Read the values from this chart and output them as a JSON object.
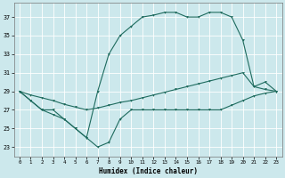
{
  "xlabel": "Humidex (Indice chaleur)",
  "bg_color": "#cce8ec",
  "line_color": "#1e6b5e",
  "grid_color": "#ffffff",
  "xlim": [
    -0.5,
    23.5
  ],
  "ylim": [
    22.0,
    38.5
  ],
  "yticks": [
    23,
    25,
    27,
    29,
    31,
    33,
    35,
    37
  ],
  "xticks": [
    0,
    1,
    2,
    3,
    4,
    5,
    6,
    7,
    8,
    9,
    10,
    11,
    12,
    13,
    14,
    15,
    16,
    17,
    18,
    19,
    20,
    21,
    22,
    23
  ],
  "line_upper_x": [
    0,
    1,
    2,
    3,
    4,
    5,
    6,
    7,
    8,
    9,
    10,
    11,
    12,
    13,
    14,
    15,
    16,
    17,
    18,
    19,
    20,
    21,
    22,
    23
  ],
  "line_upper_y": [
    29,
    28,
    27,
    27,
    26,
    25,
    24,
    29,
    33,
    35,
    36,
    37,
    37.2,
    37.5,
    37.5,
    37,
    37,
    37.5,
    37.5,
    37,
    34.5,
    29.5,
    30,
    29
  ],
  "line_mid_x": [
    0,
    1,
    2,
    3,
    4,
    5,
    6,
    7,
    8,
    9,
    10,
    11,
    12,
    13,
    14,
    15,
    16,
    17,
    18,
    19,
    20,
    21,
    22,
    23
  ],
  "line_mid_y": [
    29,
    28.6,
    28.3,
    28,
    27.6,
    27.3,
    27,
    27.2,
    27.5,
    27.8,
    28,
    28.3,
    28.6,
    28.9,
    29.2,
    29.5,
    29.8,
    30.1,
    30.4,
    30.7,
    31,
    29.5,
    29.2,
    29
  ],
  "line_lower_x": [
    0,
    1,
    2,
    3,
    4,
    5,
    6,
    7,
    8,
    9,
    10,
    11,
    12,
    13,
    14,
    15,
    16,
    17,
    18,
    19,
    20,
    21,
    22,
    23
  ],
  "line_lower_y": [
    29,
    28,
    27,
    26.5,
    26,
    25,
    24,
    23,
    23.5,
    26,
    27,
    27,
    27,
    27,
    27,
    27,
    27,
    27,
    27,
    27.5,
    28,
    28.5,
    28.8,
    29
  ]
}
